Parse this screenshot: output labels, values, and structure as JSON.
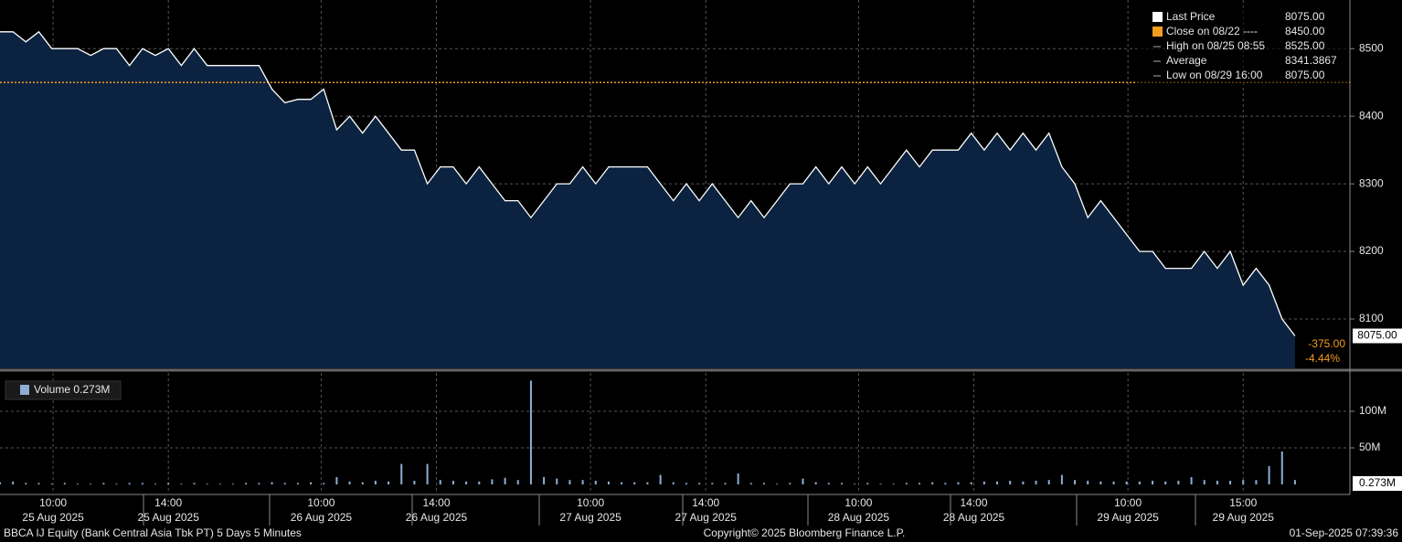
{
  "chart_data": [
    {
      "type": "line",
      "name": "Last Price",
      "x": [
        0,
        1,
        2,
        3,
        4,
        5,
        6,
        7,
        8,
        9,
        10,
        11,
        12,
        13,
        14,
        15,
        16,
        17,
        18,
        19,
        20,
        21,
        22,
        23,
        24,
        25,
        26,
        27,
        28,
        29,
        30,
        31,
        32,
        33,
        34,
        35,
        36,
        37,
        38,
        39,
        40,
        41,
        42,
        43,
        44,
        45,
        46,
        47,
        48,
        49,
        50,
        51,
        52,
        53,
        54,
        55,
        56,
        57,
        58,
        59,
        60,
        61,
        62,
        63,
        64,
        65,
        66,
        67,
        68,
        69,
        70,
        71,
        72,
        73,
        74,
        75,
        76,
        77,
        78,
        79,
        80,
        81,
        82,
        83,
        84,
        85,
        86,
        87,
        88,
        89,
        90,
        91,
        92,
        93,
        94,
        95,
        96,
        97,
        98,
        99,
        100
      ],
      "values": [
        8525,
        8525,
        8510,
        8525,
        8500,
        8500,
        8500,
        8490,
        8500,
        8500,
        8475,
        8500,
        8490,
        8500,
        8475,
        8500,
        8475,
        8475,
        8475,
        8475,
        8475,
        8440,
        8420,
        8425,
        8425,
        8440,
        8380,
        8400,
        8375,
        8400,
        8375,
        8350,
        8350,
        8300,
        8325,
        8325,
        8300,
        8325,
        8300,
        8275,
        8275,
        8250,
        8275,
        8300,
        8300,
        8325,
        8300,
        8325,
        8325,
        8325,
        8325,
        8300,
        8275,
        8300,
        8275,
        8300,
        8275,
        8250,
        8275,
        8250,
        8275,
        8300,
        8300,
        8325,
        8300,
        8325,
        8300,
        8325,
        8300,
        8325,
        8350,
        8325,
        8350,
        8350,
        8350,
        8375,
        8350,
        8375,
        8350,
        8375,
        8350,
        8375,
        8325,
        8300,
        8250,
        8275,
        8250,
        8225,
        8200,
        8200,
        8175,
        8175,
        8175,
        8200,
        8175,
        8200,
        8150,
        8175,
        8150,
        8100,
        8075
      ],
      "color": "#ffffff",
      "fill": "#0b2340",
      "xlim": [
        0,
        104.24
      ],
      "ylim": [
        8027,
        8572
      ],
      "yticks": [
        8100,
        8200,
        8300,
        8400,
        8500
      ],
      "xticks": [
        {
          "value": 4.1,
          "label": "10:00"
        },
        {
          "value": 13,
          "label": "14:00"
        },
        {
          "value": 24.8,
          "label": "10:00"
        },
        {
          "value": 33.7,
          "label": "14:00"
        },
        {
          "value": 45.6,
          "label": "10:00"
        },
        {
          "value": 54.5,
          "label": "14:00"
        },
        {
          "value": 66.3,
          "label": "10:00"
        },
        {
          "value": 75.2,
          "label": "14:00"
        },
        {
          "value": 87.1,
          "label": "10:00"
        },
        {
          "value": 96,
          "label": "15:00"
        }
      ],
      "xtick_dates": [
        "25 Aug 2025",
        "25 Aug 2025",
        "26 Aug 2025",
        "26 Aug 2025",
        "27 Aug 2025",
        "27 Aug 2025",
        "28 Aug 2025",
        "28 Aug 2025",
        "29 Aug 2025",
        "29 Aug 2025"
      ],
      "close_line": {
        "value": 8450,
        "color": "#f39c1f"
      },
      "legend": [
        {
          "label": "Last Price",
          "value": "8075.00",
          "color": "#ffffff"
        },
        {
          "label": "Close on 08/22 ----",
          "value": "8450.00",
          "color": "#f39c1f"
        },
        {
          "label": "High on 08/25 08:55",
          "value": "8525.00"
        },
        {
          "label": "Average",
          "value": "8341.3867"
        },
        {
          "label": "Low on 08/29 16:00",
          "value": "8075.00"
        }
      ],
      "last_label": "8075.00",
      "change": "-375.00",
      "change_pct": "-4.44%"
    },
    {
      "type": "bar",
      "name": "Volume 0.273M",
      "color": "#8eaed3",
      "x": [
        0,
        1,
        2,
        3,
        4,
        5,
        6,
        7,
        8,
        9,
        10,
        11,
        12,
        13,
        14,
        15,
        16,
        17,
        18,
        19,
        20,
        21,
        22,
        23,
        24,
        25,
        26,
        27,
        28,
        29,
        30,
        31,
        32,
        33,
        34,
        35,
        36,
        37,
        38,
        39,
        40,
        41,
        42,
        43,
        44,
        45,
        46,
        47,
        48,
        49,
        50,
        51,
        52,
        53,
        54,
        55,
        56,
        57,
        58,
        59,
        60,
        61,
        62,
        63,
        64,
        65,
        66,
        67,
        68,
        69,
        70,
        71,
        72,
        73,
        74,
        75,
        76,
        77,
        78,
        79,
        80,
        81,
        82,
        83,
        84,
        85,
        86,
        87,
        88,
        89,
        90,
        91,
        92,
        93,
        94,
        95,
        96,
        97,
        98,
        99,
        100
      ],
      "values": [
        3000000,
        4000000,
        2000000,
        2000000,
        1000000,
        2000000,
        1000000,
        1000000,
        2000000,
        1000000,
        2000000,
        2000000,
        1000000,
        2000000,
        1000000,
        2000000,
        1000000,
        1000000,
        1000000,
        2000000,
        2000000,
        3000000,
        2000000,
        2000000,
        3000000,
        2000000,
        10000000,
        4000000,
        3000000,
        5000000,
        4000000,
        28000000,
        5000000,
        28000000,
        6000000,
        5000000,
        4000000,
        4000000,
        7000000,
        9000000,
        6000000,
        142000000,
        10000000,
        8000000,
        6000000,
        6000000,
        5000000,
        4000000,
        3000000,
        3000000,
        3000000,
        13000000,
        3000000,
        2000000,
        2000000,
        2000000,
        2000000,
        15000000,
        2000000,
        2000000,
        1000000,
        2000000,
        8000000,
        3000000,
        2000000,
        2000000,
        1000000,
        2000000,
        1000000,
        1000000,
        2000000,
        2000000,
        3000000,
        2000000,
        3000000,
        3000000,
        4000000,
        4000000,
        5000000,
        4000000,
        5000000,
        6000000,
        13000000,
        6000000,
        5000000,
        4000000,
        4000000,
        4000000,
        4000000,
        5000000,
        4000000,
        5000000,
        10000000,
        6000000,
        5000000,
        5000000,
        6000000,
        6000000,
        25000000,
        45000000,
        6000000
      ],
      "xlim": [
        0,
        104.24
      ],
      "ylim": [
        -12500000,
        152500000
      ],
      "yticks": [
        {
          "value": 50000000,
          "label": "50M"
        },
        {
          "value": 100000000,
          "label": "100M"
        }
      ],
      "last_label": "0.273M"
    }
  ],
  "footer": {
    "left": "BBCA IJ Equity (Bank Central Asia Tbk PT) 5 Days 5 Minutes",
    "center": "Copyright© 2025 Bloomberg Finance L.P.",
    "right": "01-Sep-2025 07:39:36"
  }
}
